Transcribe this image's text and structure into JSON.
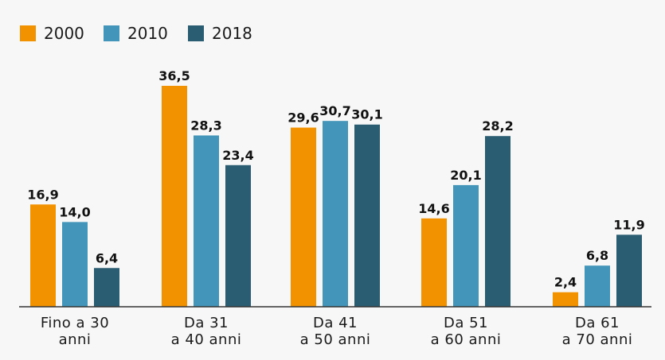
{
  "chart_data": {
    "type": "bar",
    "categories": [
      [
        "Fino a 30",
        "anni"
      ],
      [
        "Da 31",
        "a 40 anni"
      ],
      [
        "Da 41",
        "a 50 anni"
      ],
      [
        "Da 51",
        "a 60 anni"
      ],
      [
        "Da 61",
        "a 70 anni"
      ]
    ],
    "series": [
      {
        "name": "2000",
        "color": "#f39200",
        "values": [
          16.9,
          36.5,
          29.6,
          14.6,
          2.4
        ],
        "labels": [
          "16,9",
          "36,5",
          "29,6",
          "14,6",
          "2,4"
        ]
      },
      {
        "name": "2010",
        "color": "#4396b9",
        "values": [
          14.0,
          28.3,
          30.7,
          20.1,
          6.8
        ],
        "labels": [
          "14,0",
          "28,3",
          "30,7",
          "20,1",
          "6,8"
        ]
      },
      {
        "name": "2018",
        "color": "#2b5d72",
        "values": [
          6.4,
          23.4,
          30.1,
          28.2,
          11.9
        ],
        "labels": [
          "6,4",
          "23,4",
          "30,1",
          "28,2",
          "11,9"
        ]
      }
    ],
    "ylim": [
      0,
      36.5
    ],
    "grid": false,
    "legend": "top-left",
    "title": "",
    "xlabel": "",
    "ylabel": ""
  }
}
